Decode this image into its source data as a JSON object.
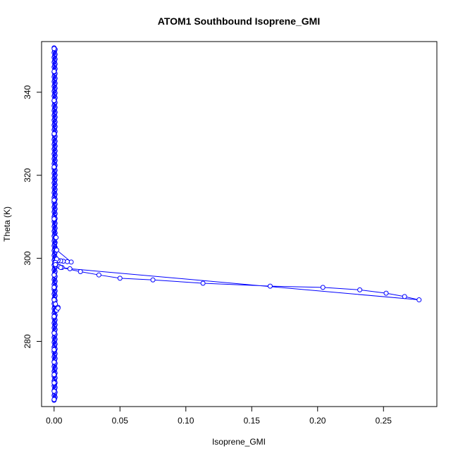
{
  "chart_data": {
    "type": "scatter",
    "title": "ATOM1 Southbound Isoprene_GMI",
    "xlabel": "Isoprene_GMI",
    "ylabel": "Theta (K)",
    "xlim": [
      -0.0095,
      0.2905
    ],
    "ylim": [
      264.3,
      352.2
    ],
    "x_ticks": [
      0.0,
      0.05,
      0.1,
      0.15,
      0.2,
      0.25
    ],
    "x_tick_labels": [
      "0.00",
      "0.05",
      "0.10",
      "0.15",
      "0.20",
      "0.25"
    ],
    "y_ticks": [
      280,
      300,
      320,
      340
    ],
    "y_tick_labels": [
      "280",
      "300",
      "320",
      "340"
    ],
    "grid": false,
    "legend": "none",
    "color": "#0000ff",
    "marker": "open-circle",
    "connected": true,
    "series": [
      {
        "points": [
          [
            0.0,
            350.5
          ],
          [
            0.0,
            345.0
          ],
          [
            0.0,
            338.0
          ],
          [
            0.0,
            330.0
          ],
          [
            0.0,
            322.0
          ],
          [
            0.0,
            314.0
          ],
          [
            0.0,
            309.5
          ],
          [
            0.0015,
            305.0
          ],
          [
            0.002,
            302.0
          ],
          [
            0.013,
            299.1
          ],
          [
            0.01,
            299.2
          ],
          [
            0.007,
            299.3
          ],
          [
            0.005,
            299.4
          ],
          [
            0.003,
            299.5
          ],
          [
            0.002,
            299.8
          ],
          [
            0.001,
            299.0
          ],
          [
            0.002,
            298.5
          ],
          [
            0.004,
            298.0
          ],
          [
            0.006,
            297.8
          ],
          [
            0.012,
            297.5
          ],
          [
            0.277,
            290.0
          ],
          [
            0.266,
            290.8
          ],
          [
            0.252,
            291.6
          ],
          [
            0.232,
            292.4
          ],
          [
            0.204,
            293.0
          ],
          [
            0.164,
            293.3
          ],
          [
            0.113,
            294.0
          ],
          [
            0.075,
            294.8
          ],
          [
            0.05,
            295.2
          ],
          [
            0.034,
            296.0
          ],
          [
            0.02,
            296.8
          ],
          [
            0.005,
            297.8
          ],
          [
            0.001,
            298.5
          ],
          [
            0.0,
            296.0
          ],
          [
            0.0,
            293.0
          ],
          [
            0.0,
            290.0
          ],
          [
            0.001,
            289.0
          ],
          [
            0.003,
            288.2
          ],
          [
            0.002,
            287.5
          ],
          [
            0.003,
            288.0
          ],
          [
            0.0,
            286.0
          ],
          [
            0.0,
            282.0
          ],
          [
            0.0,
            278.0
          ],
          [
            0.0,
            275.0
          ],
          [
            0.0,
            272.0
          ],
          [
            0.0,
            270.0
          ],
          [
            0.0,
            268.0
          ],
          [
            0.0,
            266.0
          ]
        ]
      }
    ],
    "dense_column": {
      "x": 0.0,
      "y_range": [
        265.8,
        350.7
      ],
      "count": 220
    }
  }
}
